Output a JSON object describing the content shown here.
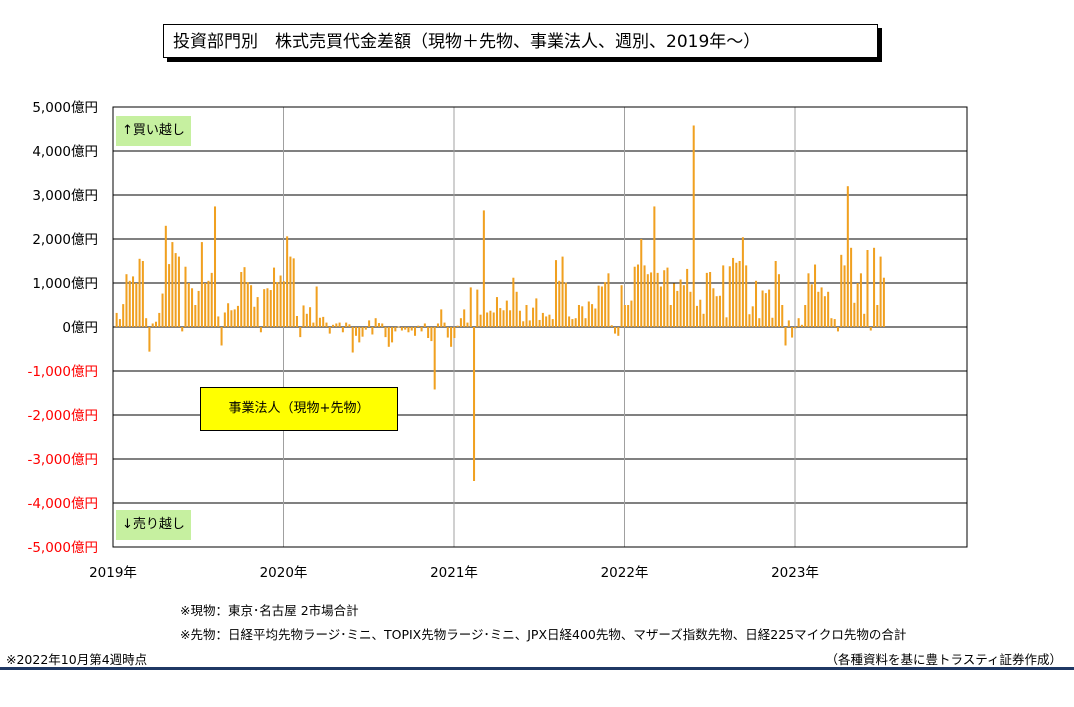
{
  "title": "投資部門別　株式売買代金差額（現物＋先物、事業法人、週別、2019年～）",
  "buy_label": "↑買い越し",
  "sell_label": "↓売り越し",
  "series_label": "事業法人（現物+先物）",
  "note_genbutsu": "※現物：東京･名古屋 2市場合計",
  "note_sakimono": "※先物：日経平均先物ラージ･ミニ、TOPIX先物ラージ･ミニ、JPX日経400先物、マザーズ指数先物、日経225マイクロ先物の合計",
  "as_of": "※2022年10月第4週時点",
  "source": "（各種資料を基に豊トラスティ証券作成）",
  "colors": {
    "bar": "#f0a020",
    "negative_label": "#ff0000",
    "buy_label_bg": "#c6f0a0",
    "series_label_bg": "#ffff00"
  },
  "chart_data": {
    "type": "bar",
    "title": "投資部門別　株式売買代金差額（現物＋先物、事業法人、週別、2019年～）",
    "ylim": [
      -5000,
      5000
    ],
    "y_ticks": [
      5000,
      4000,
      3000,
      2000,
      1000,
      0,
      -1000,
      -2000,
      -3000,
      -4000,
      -5000
    ],
    "y_tick_labels": [
      "5,000億円",
      "4,000億円",
      "3,000億円",
      "2,000億円",
      "1,000億円",
      "0億円",
      "-1,000億円",
      "-2,000億円",
      "-3,000億円",
      "-4,000億円",
      "-5,000億円"
    ],
    "x_tick_labels": [
      "2019年",
      "2020年",
      "2021年",
      "2022年",
      "2023年"
    ],
    "grid": true,
    "series": [
      {
        "weeks_per_year": 52,
        "values": [
          320,
          180,
          520,
          1200,
          1050,
          1150,
          1000,
          1550,
          1500,
          200,
          -560,
          80,
          120,
          320,
          760,
          2300,
          1430,
          1930,
          1680,
          1600,
          -100,
          1370,
          1000,
          880,
          500,
          820,
          1930,
          1000,
          1050,
          1230,
          2740,
          240,
          -420,
          330,
          540,
          380,
          400,
          480,
          1250,
          1360,
          1020,
          950,
          460,
          680,
          -120,
          860,
          880,
          840,
          1350,
          1020,
          1170,
          1040,
          2060,
          1600,
          1560,
          250,
          -230,
          490,
          300,
          450,
          100,
          920,
          210,
          230,
          100,
          -150,
          50,
          80,
          100,
          -120,
          100,
          60,
          -580,
          -200,
          -350,
          -220,
          -60,
          150,
          -170,
          200,
          90,
          80,
          -230,
          -450,
          -350,
          -100,
          10,
          -80,
          -60,
          -120,
          -80,
          -200,
          30,
          -100,
          80,
          -250,
          -320,
          -1420,
          80,
          400,
          100,
          -240,
          -450,
          -250,
          30,
          200,
          400,
          100,
          900,
          -3500,
          850,
          280,
          2650,
          330,
          370,
          330,
          680,
          430,
          380,
          600,
          380,
          1120,
          800,
          370,
          130,
          500,
          150,
          440,
          650,
          160,
          320,
          240,
          280,
          180,
          1520,
          1050,
          1600,
          1010,
          240,
          180,
          200,
          500,
          470,
          200,
          580,
          520,
          420,
          940,
          920,
          1020,
          1220,
          40,
          -150,
          -200,
          950,
          500,
          500,
          600,
          1370,
          1420,
          2000,
          1400,
          1200,
          1240,
          2740,
          1230,
          920,
          1290,
          1350,
          500,
          990,
          820,
          1080,
          950,
          1320,
          800,
          4580,
          480,
          620,
          300,
          1230,
          1250,
          880,
          700,
          710,
          1400,
          220,
          1380,
          1570,
          1460,
          1500,
          2040,
          1400,
          290,
          470,
          1050,
          200,
          830,
          770,
          850,
          210,
          1500,
          1200,
          500,
          -420,
          150,
          -240,
          -30,
          200,
          50,
          500,
          1220,
          970,
          1420,
          800,
          900,
          700,
          800,
          200,
          180,
          -100,
          1640,
          1400,
          3200,
          1800,
          550,
          1000,
          1220,
          300,
          1750,
          -80,
          1800,
          500,
          1600,
          1120
        ]
      }
    ]
  }
}
